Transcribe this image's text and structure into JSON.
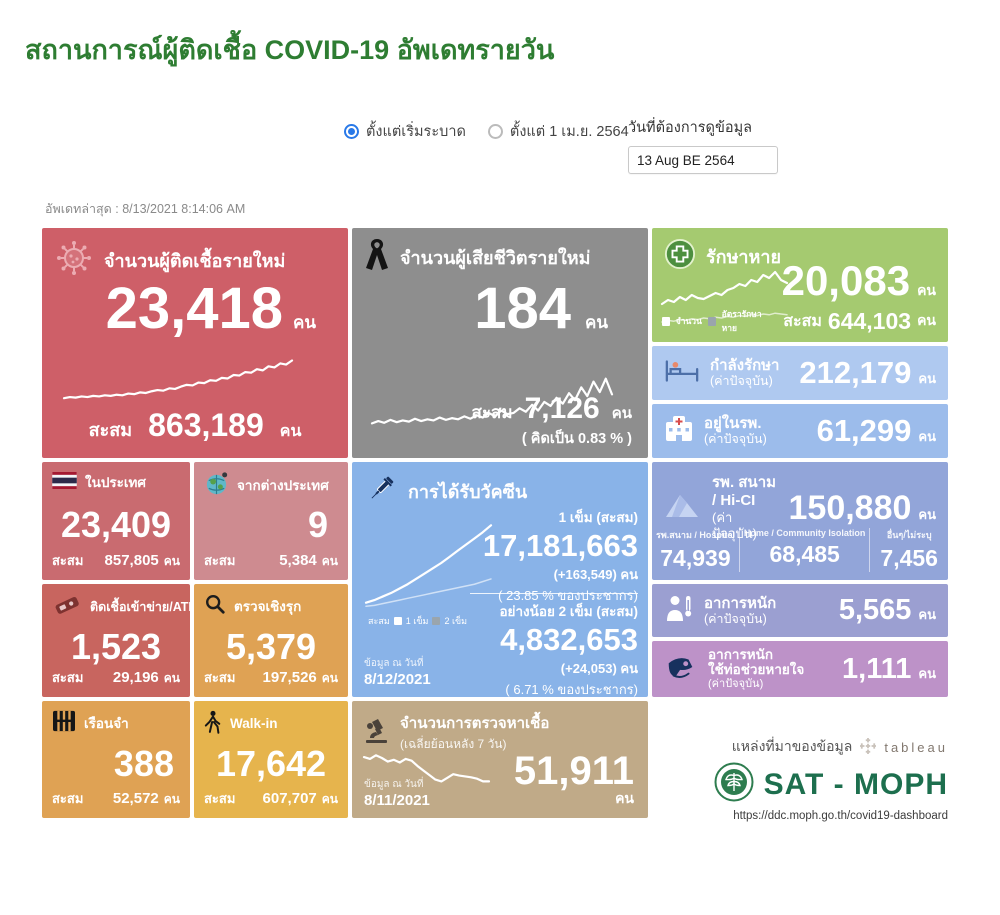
{
  "page": {
    "title": "สถานการณ์ผู้ติดเชื้อ COVID-19 อัพเดทรายวัน",
    "last_update": "อัพเดทล่าสุด : 8/13/2021 8:14:06 AM"
  },
  "controls": {
    "radio_since_start": "ตั้งแต่เริ่มระบาด",
    "radio_since_april": "ตั้งแต่ 1 เม.ย. 2564",
    "date_label": "วันที่ต้องการดูข้อมูล",
    "date_value": "13 Aug BE 2564"
  },
  "cards": {
    "new_cases": {
      "title": "จำนวนผู้ติดเชื้อรายใหม่",
      "value": "23,418",
      "unit": "คน",
      "cum_label": "สะสม",
      "cum_value": "863,189",
      "cum_unit": "คน"
    },
    "deaths": {
      "title": "จำนวนผู้เสียชีวิตรายใหม่",
      "value": "184",
      "unit": "คน",
      "cum_label": "สะสม",
      "cum_value": "7,126",
      "cum_unit": "คน",
      "percent_note": "( คิดเป็น   0.83  % )"
    },
    "recovered": {
      "title": "รักษาหาย",
      "value": "20,083",
      "unit": "คน",
      "legend_count": "จำนวน",
      "legend_rate": "อัตรารักษาหาย",
      "cum_label": "สะสม",
      "cum_value": "644,103",
      "cum_unit": "คน"
    },
    "treating": {
      "title": "กำลังรักษา",
      "subtitle": "(ค่าปัจจุบัน)",
      "value": "212,179",
      "unit": "คน"
    },
    "in_hospital": {
      "title": "อยู่ในรพ.",
      "subtitle": "(ค่าปัจจุบัน)",
      "value": "61,299",
      "unit": "คน"
    },
    "domestic": {
      "title": "ในประเทศ",
      "value": "23,409",
      "cum_label": "สะสม",
      "cum_value": "857,805",
      "cum_unit": "คน"
    },
    "abroad": {
      "title": "จากต่างประเทศ",
      "value": "9",
      "cum_label": "สะสม",
      "cum_value": "5,384",
      "cum_unit": "คน"
    },
    "vaccine": {
      "title": "การได้รับวัคซีน",
      "dose1_label": "1 เข็ม (สะสม)",
      "dose1_value": "17,181,663",
      "dose1_delta": "(+163,549) คน",
      "dose1_percent": "( 23.85 % ของประชากร)",
      "legend_cum": "สะสม",
      "legend_d1": "1 เข็ม",
      "legend_d2": "2 เข็ม",
      "dose2_label": "อย่างน้อย 2 เข็ม (สะสม)",
      "dose2_value": "4,832,653",
      "dose2_delta": "(+24,053) คน",
      "dose2_percent": "(  6.71 % ของประชากร)",
      "asof_label": "ข้อมูล ณ วันที่",
      "asof_date": "8/12/2021"
    },
    "field_hospital": {
      "title": "รพ. สนาม / Hi-CI",
      "subtitle": "(ค่าปัจจุบัน)",
      "value": "150,880",
      "unit": "คน",
      "breakdown": [
        {
          "label": "รพ.สนาม / Hospitel",
          "value": "74,939"
        },
        {
          "label": "Home / Community Isolation",
          "value": "68,485"
        },
        {
          "label": "อื่นๆ/ไม่ระบุ",
          "value": "7,456"
        }
      ]
    },
    "atk": {
      "title": "ติดเชื้อเข้าข่าย/ATK",
      "value": "1,523",
      "cum_label": "สะสม",
      "cum_value": "29,196",
      "cum_unit": "คน"
    },
    "proactive": {
      "title": "ตรวจเชิงรุก",
      "value": "5,379",
      "cum_label": "สะสม",
      "cum_value": "197,526",
      "cum_unit": "คน"
    },
    "severe": {
      "title": "อาการหนัก",
      "subtitle": "(ค่าปัจจุบัน)",
      "value": "5,565",
      "unit": "คน"
    },
    "ventilator": {
      "title": "อาการหนัก",
      "title2": "ใช้ท่อช่วยหายใจ",
      "subtitle": "(ค่าปัจจุบัน)",
      "value": "1,111",
      "unit": "คน"
    },
    "prison": {
      "title": "เรือนจำ",
      "value": "388",
      "cum_label": "สะสม",
      "cum_value": "52,572",
      "cum_unit": "คน"
    },
    "walkin": {
      "title": "Walk-in",
      "value": "17,642",
      "cum_label": "สะสม",
      "cum_value": "607,707",
      "cum_unit": "คน"
    },
    "tests": {
      "title": "จำนวนการตรวจหาเชื้อ",
      "subtitle": "(เฉลี่ยย้อนหลัง 7 วัน)",
      "value": "51,911",
      "unit": "คน",
      "asof_label": "ข้อมูล ณ วันที่",
      "asof_date": "8/11/2021"
    }
  },
  "source": {
    "label": "แหล่งที่มาของข้อมูล",
    "tableau": "tableau",
    "org": "SAT - MOPH",
    "url": "https://ddc.moph.go.th/covid19-dashboard"
  },
  "colors": {
    "title_green": "#2E7D32",
    "radio_blue": "#2979E8",
    "new_cases": "#CE5F68",
    "deaths": "#8E8E8E",
    "recovered": "#A5CA70",
    "treating": "#AFC9F0",
    "in_hospital": "#9CBCEB",
    "domestic": "#C96B70",
    "abroad": "#CE8B90",
    "vaccine": "#89B3E8",
    "field_hospital": "#92A5D9",
    "atk": "#C8655F",
    "proactive": "#DFA254",
    "severe": "#9B9FD1",
    "ventilator": "#BD92C8",
    "prison": "#DFA254",
    "walkin": "#E6B44D",
    "tests": "#C0AA88",
    "sat_moph_green": "#1D6F4E"
  },
  "sparklines": {
    "new_cases": [
      10,
      12,
      11,
      13,
      12,
      14,
      13,
      15,
      14,
      16,
      15,
      18,
      17,
      20,
      19,
      22,
      24,
      23,
      27,
      26,
      30,
      33,
      32,
      37,
      36,
      41,
      40,
      45,
      44,
      50,
      49,
      55,
      54,
      60,
      58,
      65,
      63,
      70,
      68,
      75
    ],
    "deaths": [
      8,
      12,
      9,
      14,
      10,
      13,
      11,
      16,
      12,
      15,
      13,
      18,
      14,
      17,
      15,
      20,
      16,
      22,
      18,
      26,
      20,
      30,
      24,
      26,
      34,
      28,
      40,
      30,
      45,
      38,
      52,
      42,
      60,
      48,
      70,
      55,
      80,
      62,
      85,
      58
    ],
    "recovered_count": [
      28,
      36,
      32,
      42,
      36,
      46,
      40,
      38,
      44,
      50,
      46,
      56,
      60,
      68,
      64,
      76,
      72,
      86,
      80,
      92,
      76,
      70
    ],
    "recovered_rate": [
      10,
      14,
      12,
      16,
      14,
      18,
      16,
      20,
      18,
      22,
      20,
      24,
      22,
      26,
      24,
      28,
      26,
      30,
      28,
      32,
      30,
      28
    ],
    "vaccine_dose1": [
      6,
      9,
      13,
      17,
      22,
      27,
      33,
      39,
      45,
      51,
      58,
      65,
      72,
      79,
      86,
      94
    ],
    "vaccine_dose2": [
      2,
      3,
      5,
      7,
      9,
      11,
      13,
      15,
      17,
      19,
      21,
      23,
      25,
      27,
      30,
      33
    ],
    "tests": [
      82,
      78,
      86,
      80,
      72,
      76,
      70,
      78,
      74,
      62,
      52,
      42,
      32,
      28,
      36,
      44,
      41,
      39,
      37,
      34,
      28,
      28
    ]
  }
}
